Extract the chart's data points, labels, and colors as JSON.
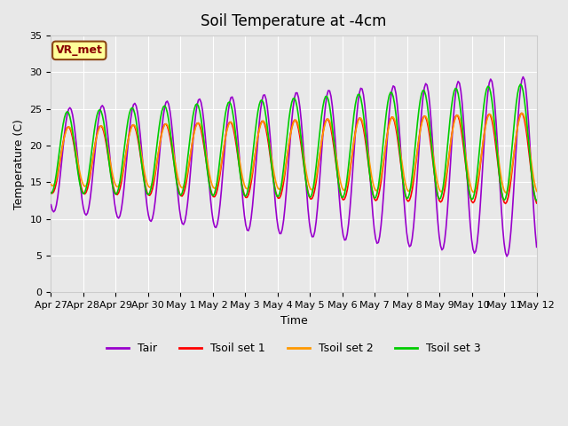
{
  "title": "Soil Temperature at -4cm",
  "xlabel": "Time",
  "ylabel": "Temperature (C)",
  "ylim": [
    0,
    35
  ],
  "yticks": [
    0,
    5,
    10,
    15,
    20,
    25,
    30,
    35
  ],
  "x_labels": [
    "Apr 27",
    "Apr 28",
    "Apr 29",
    "Apr 30",
    "May 1",
    "May 2",
    "May 3",
    "May 4",
    "May 5",
    "May 6",
    "May 7",
    "May 8",
    "May 9",
    "May 10",
    "May 11",
    "May 12"
  ],
  "bg_color": "#e8e8e8",
  "plot_bg": "#e8e8e8",
  "grid_color": "#ffffff",
  "annotation_text": "VR_met",
  "annotation_bg": "#ffff99",
  "annotation_border": "#8B4513",
  "colors": {
    "Tair": "#9900cc",
    "Tsoil set 1": "#ff0000",
    "Tsoil set 2": "#ff9900",
    "Tsoil set 3": "#00cc00"
  },
  "legend_labels": [
    "Tair",
    "Tsoil set 1",
    "Tsoil set 2",
    "Tsoil set 3"
  ]
}
